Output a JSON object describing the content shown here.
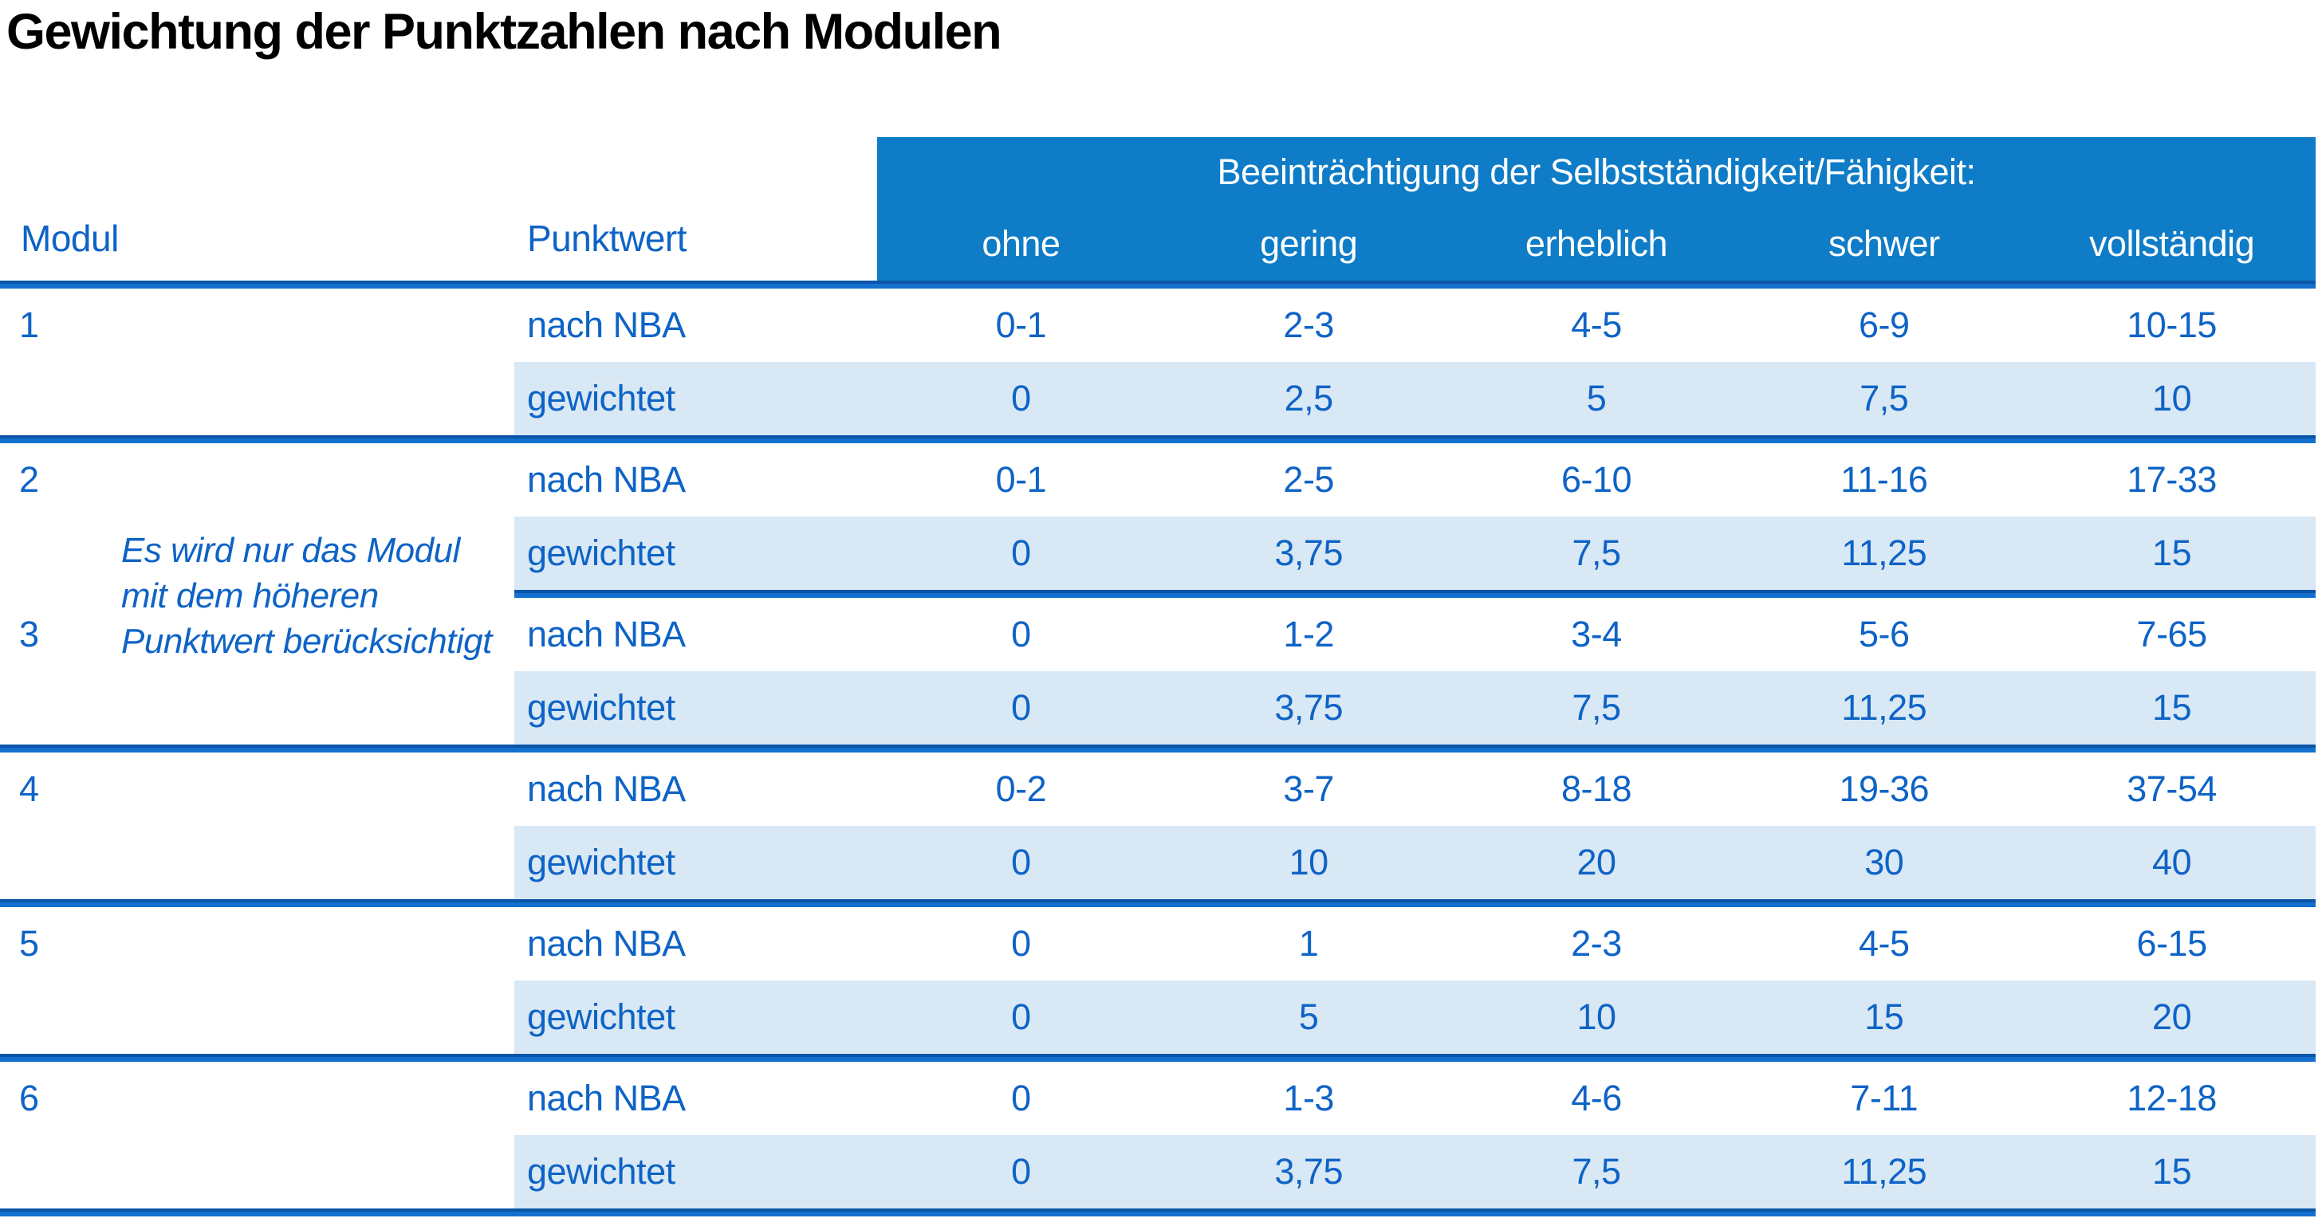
{
  "title": "Gewichtung der Punktzahlen nach Modulen",
  "colors": {
    "header_blue": "#0e7cc7",
    "row_blue": "#d9e8f5",
    "text_blue": "#0e63c6",
    "line_dark": "#0a55a8",
    "line_light": "#1470ce",
    "title_color": "#000000"
  },
  "table": {
    "modul_header": "Modul",
    "punktwert_header": "Punktwert",
    "impairment_header": "Beeinträchtigung der Selbstständigkeit/Fähigkeit:",
    "severity_labels": [
      "ohne",
      "gering",
      "erheblich",
      "schwer",
      "vollständig"
    ],
    "note_lines": [
      "Es wird nur das Modul",
      "mit dem höheren",
      "Punktwert berücksichtigt"
    ],
    "row_label_nba": "nach NBA",
    "row_label_weighted": "gewichtet",
    "modules": [
      {
        "module": "1",
        "rows": [
          {
            "label": "nach NBA",
            "values": [
              "0-1",
              "2-3",
              "4-5",
              "6-9",
              "10-15"
            ]
          },
          {
            "label": "gewichtet",
            "values": [
              "0",
              "2,5",
              "5",
              "7,5",
              "10"
            ]
          }
        ]
      },
      {
        "module": "2",
        "rows": [
          {
            "label": "nach NBA",
            "values": [
              "0-1",
              "2-5",
              "6-10",
              "11-16",
              "17-33"
            ]
          },
          {
            "label": "gewichtet",
            "values": [
              "0",
              "3,75",
              "7,5",
              "11,25",
              "15"
            ]
          }
        ]
      },
      {
        "module": "3",
        "rows": [
          {
            "label": "nach NBA",
            "values": [
              "0",
              "1-2",
              "3-4",
              "5-6",
              "7-65"
            ]
          },
          {
            "label": "gewichtet",
            "values": [
              "0",
              "3,75",
              "7,5",
              "11,25",
              "15"
            ]
          }
        ]
      },
      {
        "module": "4",
        "rows": [
          {
            "label": "nach NBA",
            "values": [
              "0-2",
              "3-7",
              "8-18",
              "19-36",
              "37-54"
            ]
          },
          {
            "label": "gewichtet",
            "values": [
              "0",
              "10",
              "20",
              "30",
              "40"
            ]
          }
        ]
      },
      {
        "module": "5",
        "rows": [
          {
            "label": "nach NBA",
            "values": [
              "0",
              "1",
              "2-3",
              "4-5",
              "6-15"
            ]
          },
          {
            "label": "gewichtet",
            "values": [
              "0",
              "5",
              "10",
              "15",
              "20"
            ]
          }
        ]
      },
      {
        "module": "6",
        "rows": [
          {
            "label": "nach NBA",
            "values": [
              "0",
              "1-3",
              "4-6",
              "7-11",
              "12-18"
            ]
          },
          {
            "label": "gewichtet",
            "values": [
              "0",
              "3,75",
              "7,5",
              "11,25",
              "15"
            ]
          }
        ]
      }
    ]
  }
}
